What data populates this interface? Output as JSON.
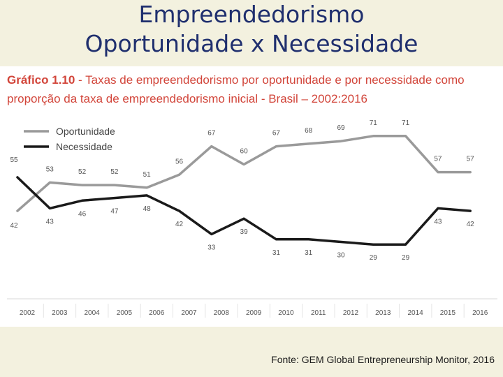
{
  "slide": {
    "title_line1": "Empreendedorismo",
    "title_line2": "Oportunidade x Necessidade",
    "source": "Fonte: GEM Global Entrepreneurship Monitor, 2016"
  },
  "chart_data": {
    "type": "line",
    "title_prefix": "Gráfico 1.10",
    "title": " - Taxas de empreendedorismo por oportunidade e por necessidade como",
    "title_line2": "proporção da taxa de empreendedorismo inicial - Brasil – 2002:2016",
    "categories": [
      "2002",
      "2003",
      "2004",
      "2005",
      "2006",
      "2007",
      "2008",
      "2009",
      "2010",
      "2011",
      "2012",
      "2013",
      "2014",
      "2015",
      "2016"
    ],
    "series": [
      {
        "name": "Oportunidade",
        "color": "#9a9a9a",
        "values": [
          42,
          53,
          52,
          52,
          51,
          56,
          67,
          60,
          67,
          68,
          69,
          71,
          71,
          57,
          57
        ]
      },
      {
        "name": "Necessidade",
        "color": "#1a1a1a",
        "values": [
          55,
          43,
          46,
          47,
          48,
          42,
          33,
          39,
          31,
          31,
          30,
          29,
          29,
          43,
          42
        ]
      }
    ],
    "legend_position": "top-left",
    "grid": false
  }
}
